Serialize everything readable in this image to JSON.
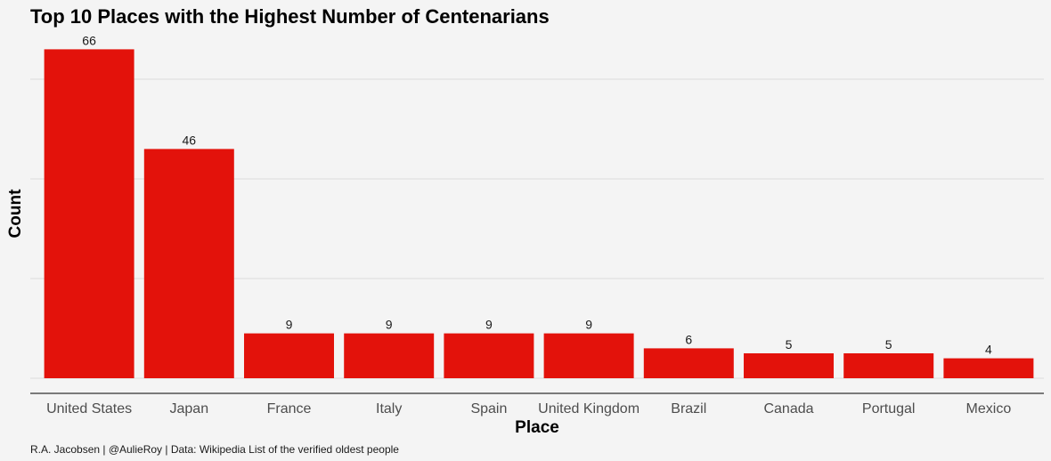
{
  "chart_data": {
    "type": "bar",
    "title": "Top 10 Places with the Highest Number of Centenarians",
    "xlabel": "Place",
    "ylabel": "Count",
    "categories": [
      "United States",
      "Japan",
      "France",
      "Italy",
      "Spain",
      "United Kingdom",
      "Brazil",
      "Canada",
      "Portugal",
      "Mexico"
    ],
    "values": [
      66,
      46,
      9,
      9,
      9,
      9,
      6,
      5,
      5,
      4
    ],
    "ylim": [
      0,
      70
    ],
    "gridlines": [
      0,
      20,
      40,
      60
    ],
    "grid": true,
    "legend": "none",
    "bar_color": "#e3120b",
    "caption": "R.A. Jacobsen | @AulieRoy | Data: Wikipedia List of the verified oldest people"
  }
}
